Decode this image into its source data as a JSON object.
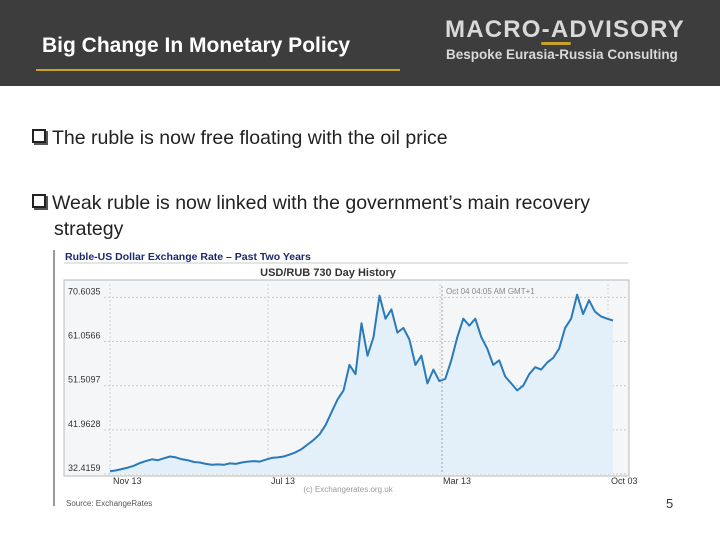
{
  "header": {
    "title": "Big Change In Monetary Policy",
    "logo_main": "MACRO-ADVISORY",
    "logo_sub": "Bespoke Eurasia-Russia Consulting",
    "accent": "#c9a227",
    "bg": "#3d3d3d"
  },
  "bullets": [
    {
      "text": "The ruble is now free floating with the oil price",
      "icon": "checkbox-bullet-icon"
    },
    {
      "text_line1": "Weak ruble is now linked with the government’s main recovery",
      "text_line2": "strategy",
      "icon": "checkbox-bullet-icon"
    }
  ],
  "chart_caption": "Ruble-US Dollar Exchange Rate – Past Two Years",
  "source_note": "Source: ExchangeRates",
  "page_number": "5",
  "chart_data": {
    "type": "area",
    "title": "USD/RUB  730 Day History",
    "hover_label": "Oct 04  04:05 AM GMT+1",
    "watermark": "(c) Exchangerates.org.uk",
    "xlabel": "",
    "ylabel": "",
    "x_ticks": [
      "Nov 13",
      "Jul 13",
      "Mar 13",
      "Oct 03"
    ],
    "y_ticks": [
      32.4159,
      41.9628,
      51.5097,
      61.0566,
      70.6035
    ],
    "ylim": [
      32.4159,
      73.5
    ],
    "line_color": "#2a7ab9",
    "fill_color": "#e3f0fa",
    "grid": true,
    "series": [
      {
        "values": [
          33.0,
          33.2,
          33.5,
          33.8,
          34.2,
          34.8,
          35.2,
          35.6,
          35.4,
          35.8,
          36.2,
          36.0,
          35.6,
          35.4,
          35.0,
          34.9,
          34.6,
          34.4,
          34.5,
          34.4,
          34.7,
          34.6,
          34.9,
          35.1,
          35.2,
          35.1,
          35.5,
          35.9,
          36.0,
          36.2,
          36.6,
          37.1,
          37.8,
          38.8,
          39.8,
          41.0,
          43.0,
          45.8,
          48.5,
          50.5,
          56.0,
          54.0,
          65.0,
          58.0,
          62.0,
          71.0,
          66.0,
          68.0,
          63.0,
          64.0,
          61.5,
          56.0,
          58.0,
          52.0,
          55.0,
          52.5,
          53.0,
          57.0,
          62.0,
          66.0,
          64.5,
          66.0,
          62.0,
          59.5,
          56.0,
          57.0,
          53.5,
          52.0,
          50.5,
          51.5,
          54.0,
          55.5,
          55.0,
          56.5,
          57.5,
          59.5,
          64.0,
          66.0,
          71.2,
          67.0,
          70.0,
          67.5,
          66.5,
          66.0,
          65.6
        ]
      }
    ]
  }
}
